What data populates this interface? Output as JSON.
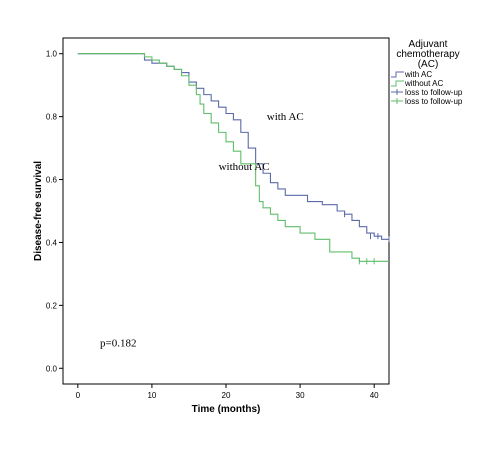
{
  "chart_data": {
    "type": "line",
    "subtype": "kaplan-meier",
    "title": "",
    "xlabel": "Time (months)",
    "ylabel": "Disease-free survival",
    "xlim": [
      -2,
      42
    ],
    "ylim": [
      -0.05,
      1.05
    ],
    "xticks": [
      0,
      10,
      20,
      30,
      40
    ],
    "yticks": [
      0.0,
      0.2,
      0.4,
      0.6,
      0.8,
      1.0
    ],
    "ytick_labels": [
      "0.0",
      "0.2",
      "0.4",
      "0.6",
      "0.8",
      "1.0"
    ],
    "grid": false,
    "legend": {
      "title_lines": [
        "Adjuvant",
        "chemotherapy",
        "(AC)"
      ],
      "placement": "top-right outside plot",
      "entries": [
        {
          "label": "with AC",
          "kind": "line",
          "color": "#5b6aa9"
        },
        {
          "label": "without AC",
          "kind": "line",
          "color": "#5fbf6a"
        },
        {
          "label": "loss to follow-up",
          "kind": "censor",
          "color": "#5b6aa9"
        },
        {
          "label": "loss to follow-up",
          "kind": "censor",
          "color": "#5fbf6a"
        }
      ]
    },
    "annotations": [
      {
        "text": "with AC",
        "x": 25.5,
        "y": 0.79
      },
      {
        "text": "without AC",
        "x": 19,
        "y": 0.63
      },
      {
        "text": "p=0.182",
        "x": 3,
        "y": 0.07
      }
    ],
    "series": [
      {
        "name": "with AC",
        "color": "#5b6aa9",
        "steps": [
          [
            0,
            1.0
          ],
          [
            9,
            0.98
          ],
          [
            10,
            0.97
          ],
          [
            12,
            0.96
          ],
          [
            13,
            0.95
          ],
          [
            14,
            0.94
          ],
          [
            15,
            0.91
          ],
          [
            16,
            0.89
          ],
          [
            17,
            0.87
          ],
          [
            18,
            0.85
          ],
          [
            19,
            0.83
          ],
          [
            20,
            0.81
          ],
          [
            21,
            0.79
          ],
          [
            22,
            0.75
          ],
          [
            23,
            0.7
          ],
          [
            24,
            0.65
          ],
          [
            25,
            0.62
          ],
          [
            26,
            0.59
          ],
          [
            27,
            0.57
          ],
          [
            28,
            0.55
          ],
          [
            31,
            0.53
          ],
          [
            33,
            0.52
          ],
          [
            35,
            0.5
          ],
          [
            36,
            0.49
          ],
          [
            37,
            0.47
          ],
          [
            38,
            0.45
          ],
          [
            39,
            0.43
          ],
          [
            40,
            0.42
          ],
          [
            41,
            0.41
          ],
          [
            42,
            0.41
          ]
        ],
        "censored": [
          {
            "x": 36,
            "y": 0.49
          },
          {
            "x": 39.5,
            "y": 0.42
          },
          {
            "x": 40.5,
            "y": 0.42
          },
          {
            "x": 42,
            "y": 0.41
          }
        ]
      },
      {
        "name": "without AC",
        "color": "#5fbf6a",
        "steps": [
          [
            0,
            1.0
          ],
          [
            9,
            0.99
          ],
          [
            10,
            0.98
          ],
          [
            11,
            0.97
          ],
          [
            12,
            0.96
          ],
          [
            13,
            0.95
          ],
          [
            14,
            0.93
          ],
          [
            15,
            0.9
          ],
          [
            16,
            0.87
          ],
          [
            16.5,
            0.84
          ],
          [
            17,
            0.81
          ],
          [
            18,
            0.78
          ],
          [
            19,
            0.75
          ],
          [
            20,
            0.72
          ],
          [
            21,
            0.69
          ],
          [
            22,
            0.65
          ],
          [
            24,
            0.58
          ],
          [
            24.5,
            0.53
          ],
          [
            25,
            0.51
          ],
          [
            26,
            0.49
          ],
          [
            27,
            0.47
          ],
          [
            28,
            0.45
          ],
          [
            30,
            0.43
          ],
          [
            32,
            0.41
          ],
          [
            34,
            0.37
          ],
          [
            37,
            0.35
          ],
          [
            38,
            0.34
          ],
          [
            42,
            0.34
          ]
        ],
        "censored": [
          {
            "x": 38,
            "y": 0.34
          },
          {
            "x": 39,
            "y": 0.34
          },
          {
            "x": 40,
            "y": 0.34
          }
        ]
      }
    ]
  }
}
